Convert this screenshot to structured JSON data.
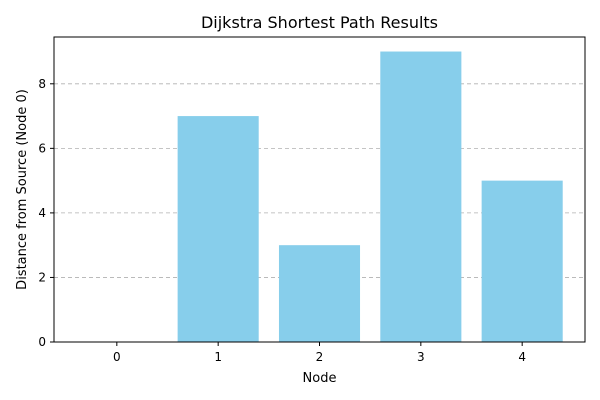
{
  "chart_data": {
    "type": "bar",
    "title": "Dijkstra Shortest Path Results",
    "xlabel": "Node",
    "ylabel": "Distance from Source (Node 0)",
    "categories": [
      "0",
      "1",
      "2",
      "3",
      "4"
    ],
    "values": [
      0,
      7,
      3,
      9,
      5
    ],
    "ylim": [
      0,
      9.45
    ],
    "yticks": [
      0,
      2,
      4,
      6,
      8
    ],
    "grid": "y-dashed",
    "bar_color": "#87CEEB"
  }
}
